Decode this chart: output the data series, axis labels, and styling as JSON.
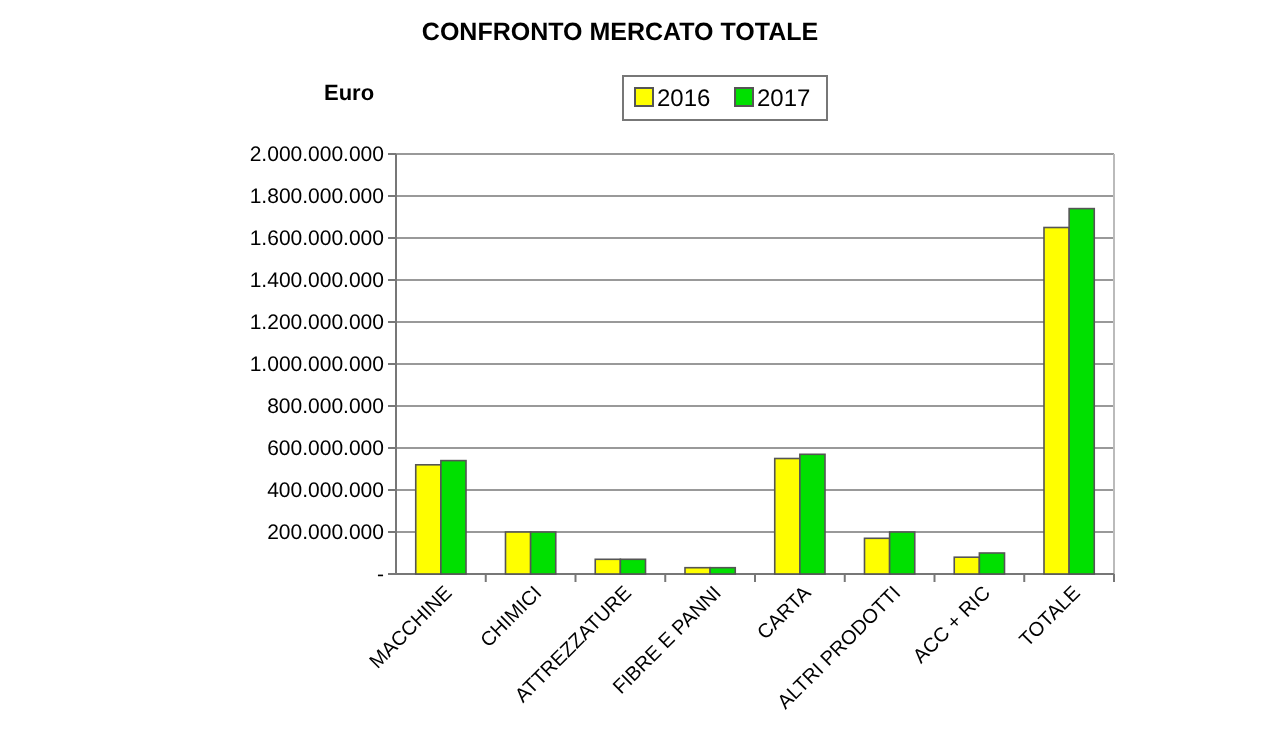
{
  "chart_data": {
    "type": "bar",
    "title": "CONFRONTO MERCATO TOTALE",
    "ylabel": "Euro",
    "categories": [
      "MACCHINE",
      "CHIMICI",
      "ATTREZZATURE",
      "FIBRE E PANNI",
      "CARTA",
      "ALTRI PRODOTTI",
      "ACC + RIC",
      "TOTALE"
    ],
    "series": [
      {
        "name": "2016",
        "color": "#ffff00",
        "values": [
          520000000,
          200000000,
          70000000,
          30000000,
          550000000,
          170000000,
          80000000,
          1650000000
        ]
      },
      {
        "name": "2017",
        "color": "#00e000",
        "values": [
          540000000,
          200000000,
          70000000,
          30000000,
          570000000,
          200000000,
          100000000,
          1740000000
        ]
      }
    ],
    "ylim": [
      0,
      2000000000
    ],
    "yticks": [
      {
        "value": 0,
        "label": "-"
      },
      {
        "value": 200000000,
        "label": "200.000.000"
      },
      {
        "value": 400000000,
        "label": "400.000.000"
      },
      {
        "value": 600000000,
        "label": "600.000.000"
      },
      {
        "value": 800000000,
        "label": "800.000.000"
      },
      {
        "value": 1000000000,
        "label": "1.000.000.000"
      },
      {
        "value": 1200000000,
        "label": "1.200.000.000"
      },
      {
        "value": 1400000000,
        "label": "1.400.000.000"
      },
      {
        "value": 1600000000,
        "label": "1.600.000.000"
      },
      {
        "value": 1800000000,
        "label": "1.800.000.000"
      },
      {
        "value": 2000000000,
        "label": "2.000.000.000"
      }
    ],
    "grid": "y",
    "legend": "top"
  }
}
